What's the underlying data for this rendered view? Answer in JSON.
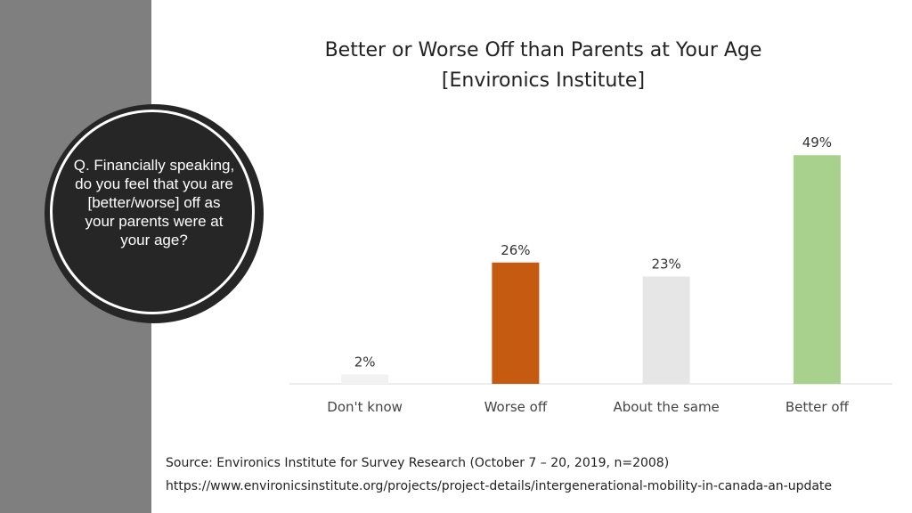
{
  "question": "Q. Financially speaking, do you feel that you are [better/worse] off as your parents were at your age?",
  "chart_data": {
    "type": "bar",
    "title": "Better or Worse Off than Parents at Your Age",
    "subtitle": "[Environics Institute]",
    "categories": [
      "Don't know",
      "Worse off",
      "About the same",
      "Better off"
    ],
    "values": [
      2,
      26,
      23,
      49
    ],
    "value_labels": [
      "2%",
      "26%",
      "23%",
      "49%"
    ],
    "colors": [
      "#f2f2f2",
      "#c55a11",
      "#e7e6e6",
      "#a9d18e"
    ],
    "xlabel": "",
    "ylabel": "",
    "ylim": [
      0,
      50
    ],
    "grid": false
  },
  "source": {
    "line1": "Source:  Environics Institute for Survey Research (October 7 – 20, 2019, n=2008)",
    "line2": "https://www.environicsinstitute.org/projects/project-details/intergenerational-mobility-in-canada-an-update"
  }
}
